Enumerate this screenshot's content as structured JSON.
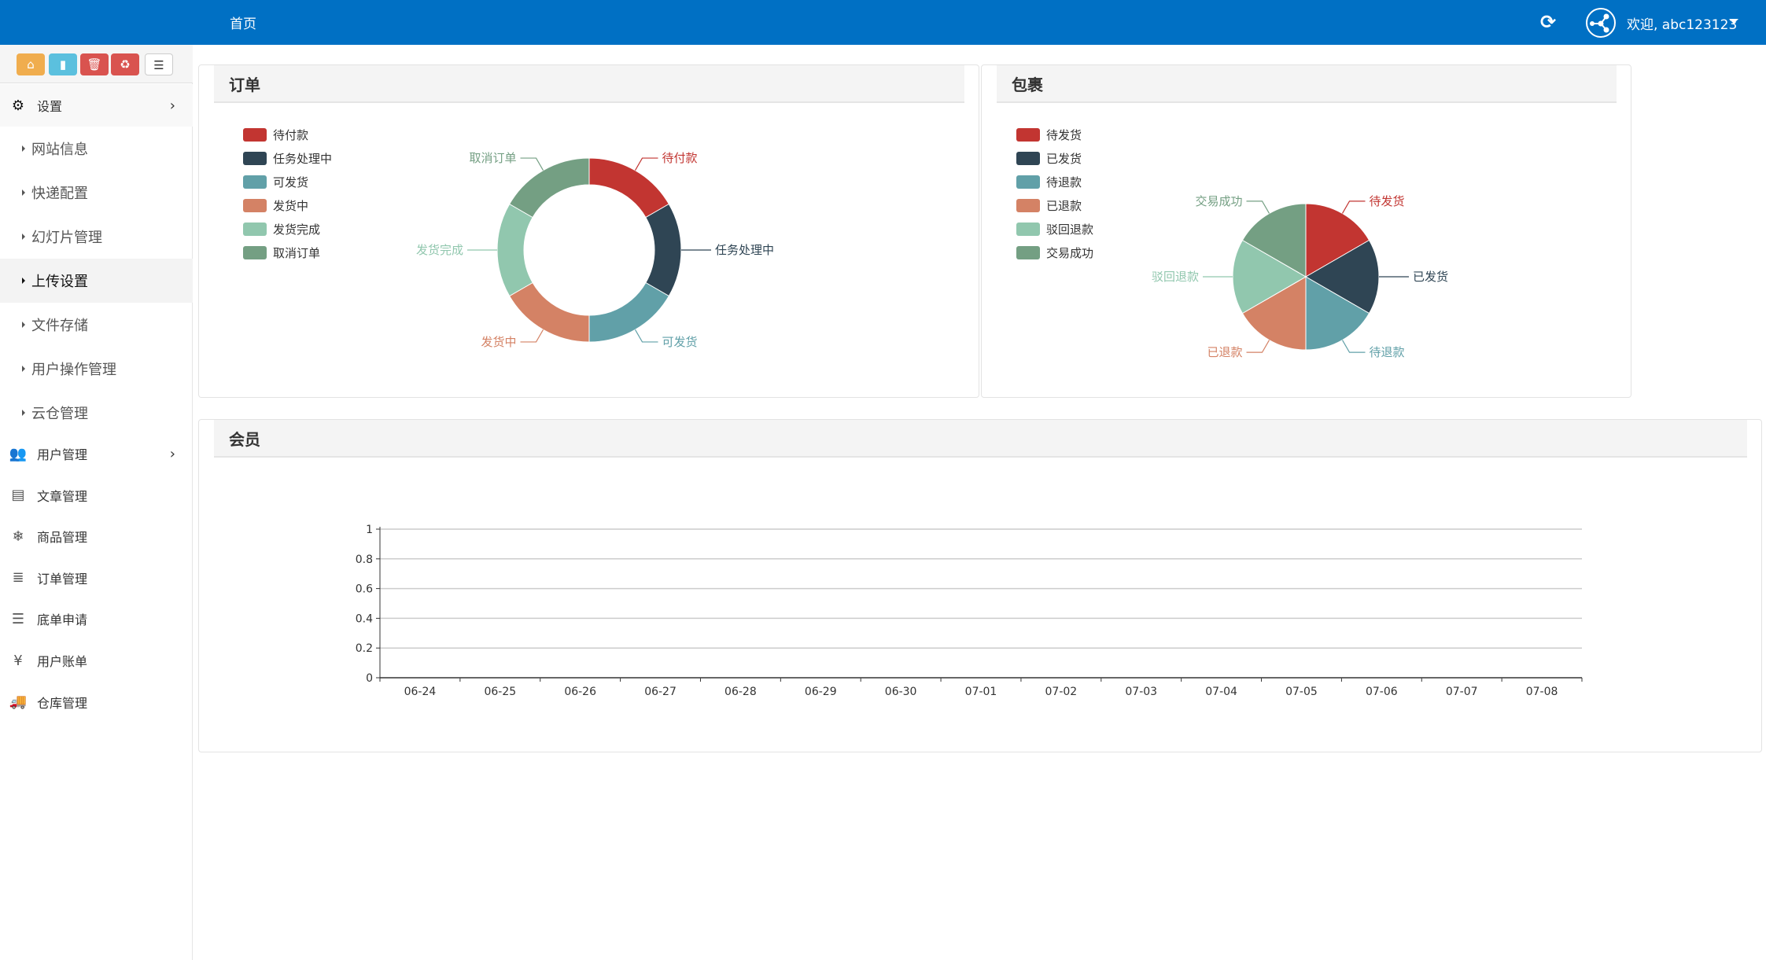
{
  "header": {
    "home_tab": "首页",
    "welcome": "欢迎, abc123123",
    "icons": [
      "refresh-icon",
      "avatar-share-icon",
      "caret-down-icon"
    ]
  },
  "shortcuts": [
    {
      "name": "home-icon",
      "color": "#f0ad4e",
      "glyph": "⌂"
    },
    {
      "name": "file-icon",
      "color": "#5bc0de",
      "glyph": "▮"
    },
    {
      "name": "trash-icon",
      "color": "#d9534f",
      "glyph": "🗑"
    },
    {
      "name": "recycle-icon",
      "color": "#d9534f",
      "glyph": "♻"
    },
    {
      "name": "list-icon",
      "color": "#ffffff",
      "glyph": "☰"
    }
  ],
  "sidebar": {
    "settings": {
      "label": "设置",
      "icon": "gears-icon",
      "glyph": "⚙"
    },
    "sub_items": [
      "网站信息",
      "快递配置",
      "幻灯片管理",
      "上传设置",
      "文件存储",
      "用户操作管理",
      "云仓管理"
    ],
    "active_sub": "上传设置",
    "items": [
      {
        "label": "用户管理",
        "icon": "users-icon",
        "glyph": "👥",
        "chevron": true
      },
      {
        "label": "文章管理",
        "icon": "newspaper-icon",
        "glyph": "▤"
      },
      {
        "label": "商品管理",
        "icon": "snowflake-icon",
        "glyph": "❄"
      },
      {
        "label": "订单管理",
        "icon": "server-icon",
        "glyph": "≣"
      },
      {
        "label": "底单申请",
        "icon": "bars-icon",
        "glyph": "☰"
      },
      {
        "label": "用户账单",
        "icon": "yen-icon",
        "glyph": "¥"
      },
      {
        "label": "仓库管理",
        "icon": "truck-icon",
        "glyph": "🚚"
      }
    ]
  },
  "panels": {
    "orders": "订单",
    "parcels": "包裹",
    "members": "会员"
  },
  "chart_data": [
    {
      "type": "pie",
      "variant": "donut",
      "title": "订单",
      "legend_position": "left",
      "categories": [
        "待付款",
        "任务处理中",
        "可发货",
        "发货中",
        "发货完成",
        "取消订单"
      ],
      "values": [
        1,
        1,
        1,
        1,
        1,
        1
      ],
      "colors": [
        "#c23531",
        "#2f4554",
        "#61a0a8",
        "#d48265",
        "#91c7ae",
        "#749f83"
      ]
    },
    {
      "type": "pie",
      "title": "包裹",
      "legend_position": "left",
      "categories": [
        "待发货",
        "已发货",
        "待退款",
        "已退款",
        "驳回退款",
        "交易成功"
      ],
      "values": [
        1,
        1,
        1,
        1,
        1,
        1
      ],
      "colors": [
        "#c23531",
        "#2f4554",
        "#61a0a8",
        "#d48265",
        "#91c7ae",
        "#749f83"
      ]
    },
    {
      "type": "line",
      "title": "会员",
      "categories": [
        "06-24",
        "06-25",
        "06-26",
        "06-27",
        "06-28",
        "06-29",
        "06-30",
        "07-01",
        "07-02",
        "07-03",
        "07-04",
        "07-05",
        "07-06",
        "07-07",
        "07-08"
      ],
      "ylim": [
        0,
        1
      ],
      "yticks": [
        "0",
        "0.2",
        "0.4",
        "0.6",
        "0.8",
        "1"
      ],
      "grid": true,
      "series": [
        {
          "values": [
            0,
            0,
            0,
            0,
            0,
            0,
            0,
            0,
            0,
            0,
            0,
            0,
            0,
            0,
            0
          ]
        }
      ]
    }
  ]
}
